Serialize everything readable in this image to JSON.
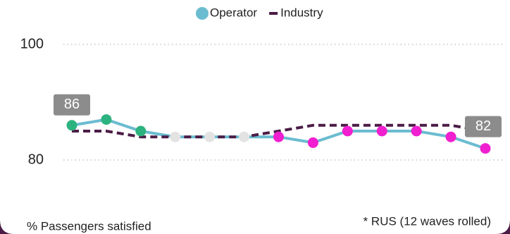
{
  "chart_data": {
    "type": "line",
    "categories": [
      null,
      null,
      null,
      null,
      null,
      null,
      null,
      null,
      null,
      null,
      null,
      null,
      null
    ],
    "series": [
      {
        "name": "Operator",
        "color": "#6bbcd0",
        "values": [
          86,
          87,
          85,
          84,
          84,
          84,
          84,
          83,
          85,
          85,
          85,
          84,
          82
        ],
        "point_colors": [
          "#2db37f",
          "#2db37f",
          "#2db37f",
          "#e3e3e3",
          "#e3e3e3",
          "#e3e3e3",
          "#f01fd0",
          "#f01fd0",
          "#f01fd0",
          "#f01fd0",
          "#f01fd0",
          "#f01fd0",
          "#f01fd0"
        ]
      },
      {
        "name": "Industry",
        "color": "#4b1c46",
        "dashed": true,
        "values": [
          85,
          85,
          84,
          84,
          84,
          84,
          85,
          86,
          86,
          86,
          86,
          86,
          85
        ]
      }
    ],
    "ylim": [
      80,
      100
    ],
    "yticks": [
      80,
      100
    ],
    "grid": true,
    "legend": "top",
    "y_label": "% Passengers satisfied",
    "note": "* RUS (12 waves rolled)"
  }
}
